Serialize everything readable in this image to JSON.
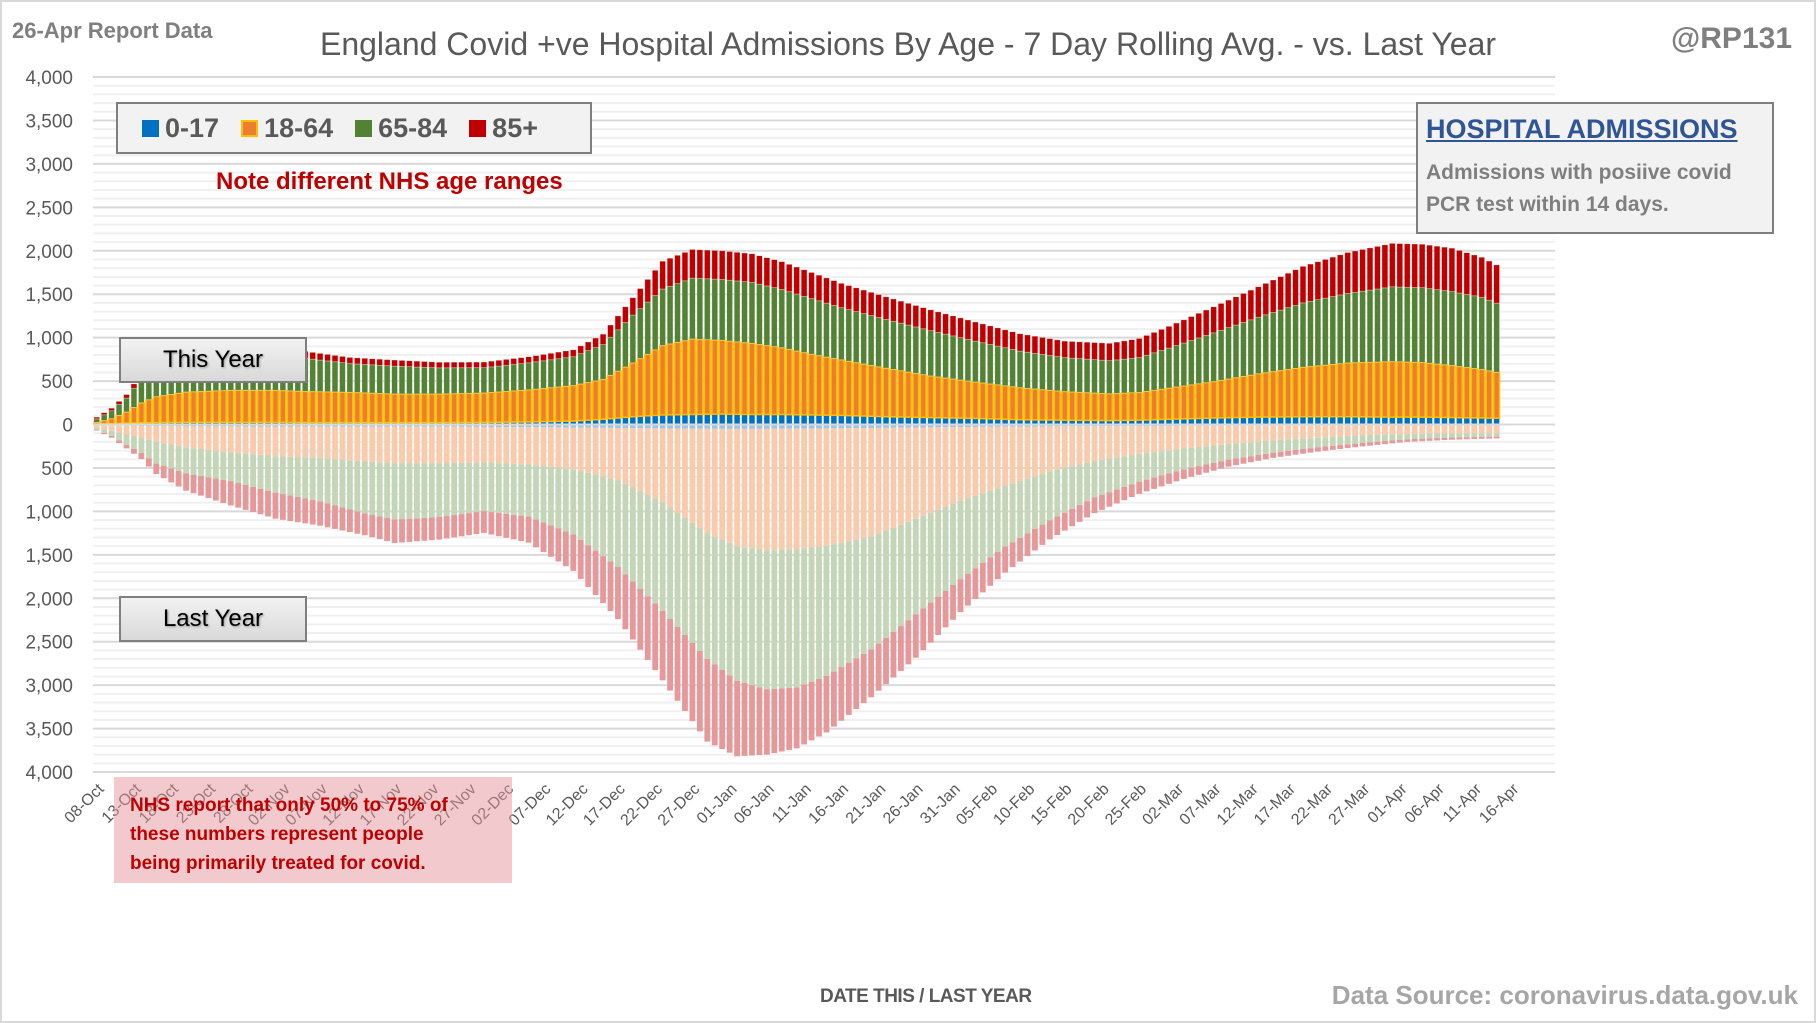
{
  "header": {
    "report_label": "26-Apr Report Data",
    "title": "England Covid +ve Hospital Admissions By Age - 7 Day Rolling Avg. - vs. Last Year",
    "handle": "@RP131"
  },
  "legend": [
    {
      "label": "0-17",
      "color": "#0070c0"
    },
    {
      "label": "18-64",
      "color": "#ed7d31",
      "border": "#ffc000"
    },
    {
      "label": "65-84",
      "color": "#548235"
    },
    {
      "label": "85+",
      "color": "#c00000"
    }
  ],
  "annotations": {
    "age_note": "Note different NHS  age ranges",
    "info_title": "HOSPITAL ADMISSIONS",
    "info_line1": "Admissions with posiive covid",
    "info_line2": "PCR test within 14 days.",
    "this_year": "This Year",
    "last_year": "Last Year",
    "warning_line1": "NHS report that only 50% to 75% of",
    "warning_line2": "these numbers represent people",
    "warning_line3": "being primarily treated for covid.",
    "source": "Data Source: coronavirus.data.gov.uk"
  },
  "chart_data": {
    "type": "bar",
    "subtype": "stacked, mirrored (this year above axis, last year below axis)",
    "title": "England Covid +ve Hospital Admissions By Age - 7 Day Rolling Avg. - vs. Last Year",
    "xlabel": "DATE THIS / LAST YEAR",
    "ylabel": "",
    "ylim": [
      -4000,
      4000
    ],
    "yticks": [
      4000,
      3500,
      3000,
      2500,
      2000,
      1500,
      1000,
      500,
      0,
      -500,
      -1000,
      -1500,
      -2000,
      -2500,
      -3000,
      -3500,
      -4000
    ],
    "ytick_labels": [
      "4,000",
      "3,500",
      "3,000",
      "2,500",
      "2,000",
      "1,500",
      "1,000",
      "500",
      "0",
      "500",
      "1,000",
      "1,500",
      "2,000",
      "2,500",
      "3,000",
      "3,500",
      "4,000"
    ],
    "x_tick_labels": [
      "08-Oct",
      "13-Oct",
      "18-Oct",
      "23-Oct",
      "28-Oct",
      "02-Nov",
      "07-Nov",
      "12-Nov",
      "17-Nov",
      "22-Nov",
      "27-Nov",
      "02-Dec",
      "07-Dec",
      "12-Dec",
      "17-Dec",
      "22-Dec",
      "27-Dec",
      "01-Jan",
      "06-Jan",
      "11-Jan",
      "16-Jan",
      "21-Jan",
      "26-Jan",
      "31-Jan",
      "05-Feb",
      "10-Feb",
      "15-Feb",
      "20-Feb",
      "25-Feb",
      "02-Mar",
      "07-Mar",
      "12-Mar",
      "17-Mar",
      "22-Mar",
      "27-Mar",
      "01-Apr",
      "06-Apr",
      "11-Apr",
      "16-Apr"
    ],
    "x_tick_every_days": 5,
    "num_days": 195,
    "grid": true,
    "legend_position": "top-left",
    "note": "Values are 7-day rolling averages read at key days (day 0 = 08-Oct); intermediate days interpolated.",
    "this_year": {
      "days": [
        0,
        2,
        4,
        6,
        8,
        12,
        18,
        24,
        28,
        34,
        40,
        46,
        52,
        58,
        64,
        68,
        72,
        76,
        80,
        84,
        88,
        92,
        96,
        100,
        106,
        112,
        118,
        124,
        130,
        136,
        140,
        144,
        150,
        156,
        162,
        168,
        174,
        178,
        182,
        186,
        190,
        194
      ],
      "series": [
        {
          "name": "0-17",
          "values": [
            5,
            8,
            15,
            20,
            22,
            25,
            25,
            25,
            22,
            22,
            22,
            22,
            24,
            30,
            40,
            60,
            90,
            110,
            115,
            120,
            115,
            115,
            110,
            105,
            90,
            80,
            70,
            55,
            50,
            45,
            50,
            60,
            75,
            85,
            90,
            90,
            85,
            85,
            80,
            75,
            70,
            70
          ]
        },
        {
          "name": "18-64",
          "values": [
            20,
            60,
            130,
            230,
            300,
            350,
            370,
            370,
            360,
            350,
            330,
            330,
            340,
            370,
            410,
            460,
            620,
            800,
            870,
            850,
            820,
            770,
            700,
            640,
            560,
            480,
            420,
            370,
            330,
            310,
            320,
            360,
            420,
            500,
            570,
            620,
            640,
            630,
            600,
            560,
            500,
            460
          ]
        },
        {
          "name": "65-84",
          "values": [
            40,
            90,
            160,
            280,
            350,
            360,
            380,
            390,
            380,
            330,
            320,
            300,
            290,
            310,
            330,
            400,
            550,
            650,
            700,
            700,
            700,
            670,
            640,
            600,
            560,
            520,
            470,
            420,
            390,
            380,
            400,
            460,
            560,
            650,
            740,
            800,
            860,
            860,
            850,
            830,
            760,
            700
          ]
        },
        {
          "name": "85+",
          "values": [
            20,
            30,
            40,
            60,
            80,
            90,
            90,
            90,
            80,
            70,
            70,
            65,
            65,
            70,
            80,
            120,
            200,
            320,
            330,
            330,
            330,
            320,
            300,
            280,
            260,
            240,
            220,
            200,
            190,
            200,
            220,
            250,
            300,
            350,
            420,
            470,
            500,
            500,
            500,
            460,
            420,
            410
          ]
        }
      ]
    },
    "last_year": {
      "days": [
        0,
        2,
        4,
        6,
        8,
        12,
        18,
        24,
        30,
        36,
        40,
        46,
        52,
        58,
        64,
        70,
        76,
        82,
        86,
        90,
        94,
        98,
        104,
        110,
        116,
        122,
        128,
        134,
        140,
        146,
        152,
        158,
        164,
        170,
        176,
        182,
        188,
        194
      ],
      "series": [
        {
          "name": "0-17",
          "values": [
            10,
            12,
            15,
            18,
            20,
            22,
            22,
            24,
            25,
            25,
            24,
            25,
            28,
            30,
            35,
            40,
            45,
            50,
            50,
            50,
            48,
            45,
            40,
            35,
            30,
            25,
            22,
            20,
            18,
            16,
            15,
            14,
            12,
            12,
            10,
            10,
            10,
            10
          ]
        },
        {
          "name": "18-64",
          "values": [
            30,
            60,
            100,
            130,
            180,
            240,
            300,
            340,
            360,
            400,
            420,
            420,
            410,
            430,
            480,
            600,
            850,
            1200,
            1350,
            1400,
            1390,
            1350,
            1250,
            1050,
            850,
            680,
            520,
            400,
            320,
            260,
            210,
            170,
            140,
            110,
            100,
            90,
            90,
            80
          ]
        },
        {
          "name": "65-84",
          "values": [
            20,
            60,
            120,
            180,
            250,
            300,
            330,
            420,
            500,
            600,
            650,
            620,
            560,
            600,
            750,
            1000,
            1250,
            1450,
            1550,
            1600,
            1590,
            1500,
            1300,
            1100,
            900,
            700,
            560,
            420,
            320,
            240,
            180,
            140,
            110,
            90,
            60,
            50,
            40,
            40
          ]
        },
        {
          "name": "85+",
          "values": [
            10,
            20,
            40,
            70,
            120,
            200,
            280,
            300,
            280,
            250,
            270,
            260,
            250,
            300,
            420,
            600,
            800,
            950,
            870,
            750,
            700,
            650,
            550,
            500,
            380,
            300,
            220,
            180,
            140,
            110,
            80,
            60,
            50,
            40,
            30,
            25,
            20,
            20
          ]
        }
      ]
    }
  }
}
